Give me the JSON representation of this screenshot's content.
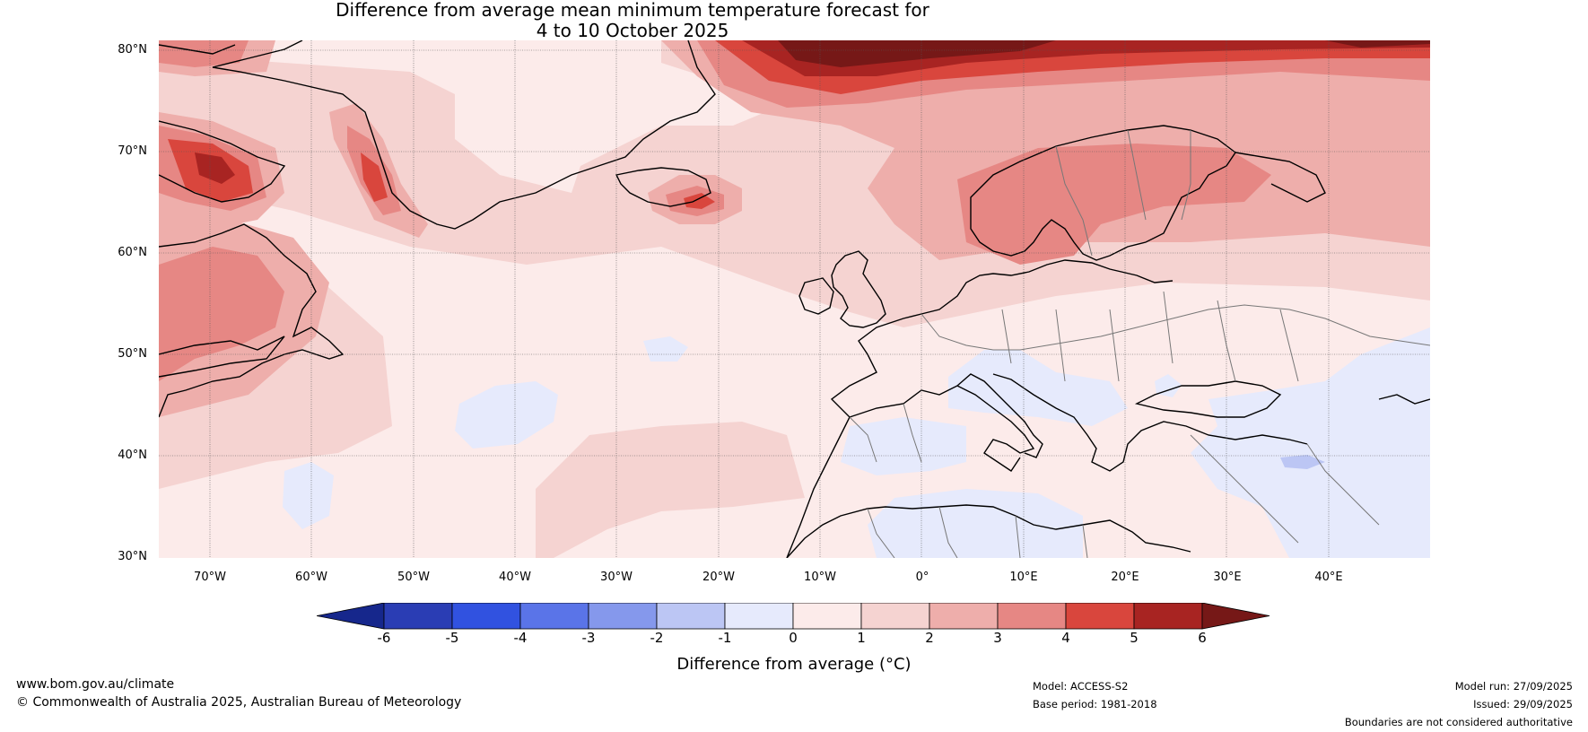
{
  "title": {
    "line1": "Difference from average mean minimum temperature forecast for",
    "line2": "4 to 10 October 2025"
  },
  "map": {
    "lat_labels": [
      "80°N",
      "70°N",
      "60°N",
      "50°N",
      "40°N",
      "30°N"
    ],
    "lon_labels": [
      "70°W",
      "60°W",
      "50°W",
      "40°W",
      "30°W",
      "20°W",
      "10°W",
      "0°",
      "10°E",
      "20°E",
      "30°E",
      "40°E"
    ],
    "extent": {
      "lon_min": -75,
      "lon_max": 50,
      "lat_min": 30,
      "lat_max": 81
    }
  },
  "colorbar": {
    "label": "Difference from average (°C)",
    "ticks": [
      "-6",
      "-5",
      "-4",
      "-3",
      "-2",
      "-1",
      "0",
      "1",
      "2",
      "3",
      "4",
      "5",
      "6"
    ],
    "colors": [
      "#16278c",
      "#2a3db4",
      "#3152e0",
      "#5a74e8",
      "#8598ec",
      "#bcc6f4",
      "#e6eafc",
      "#fcebea",
      "#f5d3d1",
      "#eeaeab",
      "#e68784",
      "#d9463d",
      "#a82422",
      "#761817"
    ]
  },
  "footer": {
    "website": "www.bom.gov.au/climate",
    "copyright": "© Commonwealth of Australia 2025, Australian Bureau of Meteorology",
    "model": "Model: ACCESS-S2",
    "base_period": "Base period: 1981-2018",
    "model_run": "Model run: 27/09/2025",
    "issued": "Issued: 29/09/2025",
    "disclaimer": "Boundaries are not considered authoritative"
  }
}
